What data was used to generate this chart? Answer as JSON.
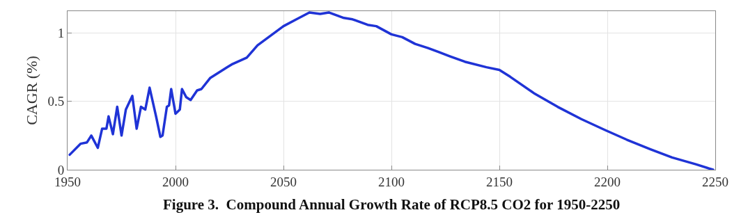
{
  "chart_data": {
    "type": "line",
    "title": "Figure 3.  Compound Annual Growth Rate of RCP8.5 CO2 for 1950-2250",
    "ylabel": "CAGR (%)",
    "x": [
      1951,
      1956,
      1959,
      1961,
      1964,
      1966,
      1968,
      1969,
      1971,
      1973,
      1975,
      1977,
      1980,
      1982,
      1984,
      1986,
      1988,
      1991,
      1993,
      1994,
      1996,
      1997,
      1998,
      2000,
      2002,
      2003,
      2005,
      2007,
      2010,
      2012,
      2016,
      2024,
      2026,
      2033,
      2038,
      2044,
      2050,
      2056,
      2062,
      2067,
      2071,
      2078,
      2082,
      2089,
      2093,
      2100,
      2105,
      2111,
      2117,
      2122,
      2127,
      2134,
      2144,
      2150,
      2155,
      2166,
      2177,
      2188,
      2199,
      2209,
      2220,
      2230,
      2241,
      2249
    ],
    "series": [
      {
        "color": "#1f33d6",
        "values": [
          0.11,
          0.19,
          0.2,
          0.25,
          0.16,
          0.3,
          0.3,
          0.39,
          0.26,
          0.46,
          0.25,
          0.44,
          0.54,
          0.3,
          0.46,
          0.44,
          0.6,
          0.39,
          0.24,
          0.25,
          0.46,
          0.47,
          0.59,
          0.41,
          0.44,
          0.59,
          0.53,
          0.51,
          0.58,
          0.59,
          0.67,
          0.75,
          0.77,
          0.82,
          0.91,
          0.98,
          1.05,
          1.1,
          1.15,
          1.14,
          1.15,
          1.11,
          1.1,
          1.06,
          1.05,
          0.99,
          0.97,
          0.92,
          0.89,
          0.86,
          0.83,
          0.79,
          0.75,
          0.73,
          0.68,
          0.56,
          0.46,
          0.37,
          0.29,
          0.22,
          0.15,
          0.09,
          0.04,
          0.0
        ]
      }
    ],
    "xlim": [
      1950,
      2250
    ],
    "ylim": [
      0,
      1.16
    ],
    "xticks": [
      1950,
      2000,
      2050,
      2100,
      2150,
      2200,
      2250
    ],
    "yticks": [
      0,
      0.5,
      1
    ],
    "grid": true,
    "line_style": "solid",
    "marker": "none"
  }
}
